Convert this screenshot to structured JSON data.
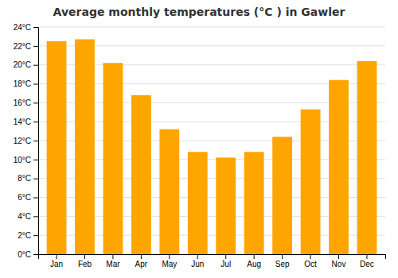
{
  "chart_data": {
    "type": "bar",
    "title": "Average monthly temperatures (°C ) in Gawler",
    "categories": [
      "Jan",
      "Feb",
      "Mar",
      "Apr",
      "May",
      "Jun",
      "Jul",
      "Aug",
      "Sep",
      "Oct",
      "Nov",
      "Dec"
    ],
    "values": [
      22.5,
      22.7,
      20.2,
      16.8,
      13.2,
      10.8,
      10.2,
      10.8,
      12.4,
      15.3,
      18.4,
      20.4
    ],
    "color": "#FFA500",
    "ylim": [
      0,
      24
    ],
    "yticks": [
      {
        "value": 0,
        "label": "0°C"
      },
      {
        "value": 2,
        "label": "2°C"
      },
      {
        "value": 4,
        "label": "4°C"
      },
      {
        "value": 6,
        "label": "6°C"
      },
      {
        "value": 8,
        "label": "8°C"
      },
      {
        "value": 10,
        "label": "10°C"
      },
      {
        "value": 12,
        "label": "12°C"
      },
      {
        "value": 14,
        "label": "14°C"
      },
      {
        "value": 16,
        "label": "16°C"
      },
      {
        "value": 18,
        "label": "18°C"
      },
      {
        "value": 20,
        "label": "20°C"
      },
      {
        "value": 22,
        "label": "22°C"
      },
      {
        "value": 24,
        "label": "24°C"
      }
    ],
    "grid": true
  }
}
